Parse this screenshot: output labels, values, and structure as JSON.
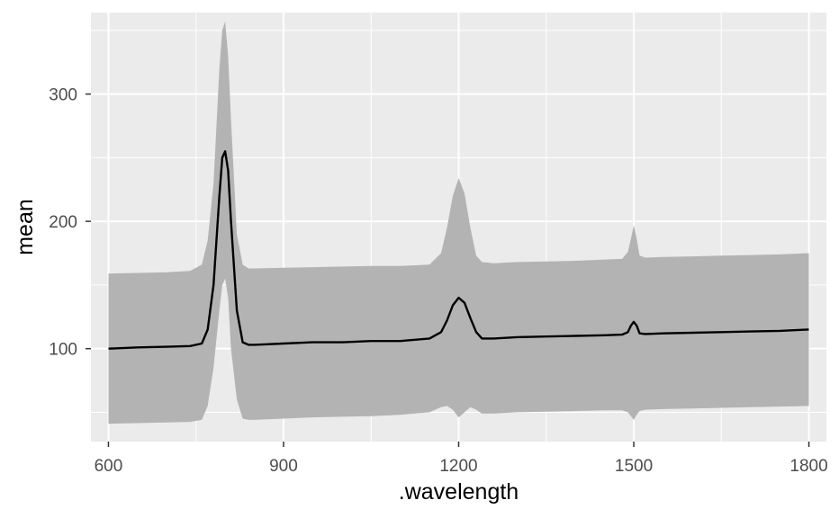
{
  "chart_data": {
    "type": "area",
    "title": "",
    "xlabel": ".wavelength",
    "ylabel": "mean",
    "xlim": [
      570,
      1830
    ],
    "ylim": [
      27,
      364
    ],
    "x_ticks": [
      600,
      900,
      1200,
      1500,
      1800
    ],
    "y_ticks": [
      100,
      200,
      300
    ],
    "x_tick_labels": [
      "600",
      "900",
      "1200",
      "1500",
      "1800"
    ],
    "y_tick_labels": [
      "100",
      "200",
      "300"
    ],
    "grid": true,
    "legend": "none",
    "colors": {
      "panel": "#ebebeb",
      "grid": "#ffffff",
      "ribbon": "#b3b3b3",
      "line": "#000000",
      "axis_text": "#4d4d4d"
    },
    "series": [
      {
        "kind": "line",
        "x": [
          600,
          650,
          700,
          740,
          760,
          770,
          780,
          790,
          795,
          800,
          805,
          810,
          820,
          830,
          840,
          850,
          900,
          950,
          1000,
          1050,
          1100,
          1150,
          1170,
          1180,
          1190,
          1200,
          1210,
          1220,
          1230,
          1240,
          1260,
          1300,
          1350,
          1400,
          1450,
          1480,
          1490,
          1495,
          1500,
          1505,
          1510,
          1520,
          1550,
          1600,
          1650,
          1700,
          1750,
          1800
        ],
        "y": [
          100,
          101,
          101.5,
          102,
          104,
          115,
          150,
          220,
          250,
          255,
          240,
          200,
          130,
          105,
          103,
          103,
          104,
          105,
          105,
          106,
          106,
          108,
          113,
          122,
          134,
          140,
          136,
          124,
          113,
          108,
          108,
          109,
          109.5,
          110,
          110.5,
          111,
          113,
          118,
          121,
          118,
          112,
          111.5,
          112,
          112.5,
          113,
          113.5,
          114,
          115
        ]
      },
      {
        "kind": "ribbon",
        "x": [
          600,
          650,
          700,
          740,
          760,
          770,
          780,
          790,
          795,
          800,
          805,
          810,
          820,
          830,
          840,
          850,
          900,
          950,
          1000,
          1050,
          1100,
          1150,
          1170,
          1180,
          1190,
          1200,
          1210,
          1220,
          1230,
          1240,
          1260,
          1300,
          1350,
          1400,
          1450,
          1480,
          1490,
          1495,
          1500,
          1505,
          1510,
          1520,
          1550,
          1600,
          1650,
          1700,
          1750,
          1800
        ],
        "ymin": [
          41,
          41.5,
          42,
          42.5,
          44,
          55,
          85,
          130,
          150,
          155,
          140,
          100,
          60,
          45,
          44,
          44,
          45,
          46,
          46.5,
          47,
          48,
          50,
          54,
          55,
          52,
          46,
          50,
          54,
          52,
          49,
          49,
          50,
          50.5,
          51,
          51.5,
          51.5,
          50,
          47,
          44,
          48,
          51,
          52,
          52.5,
          53,
          53.5,
          54,
          54.5,
          55
        ],
        "ymax": [
          159,
          159.5,
          160,
          161,
          166,
          185,
          230,
          320,
          350,
          357,
          330,
          280,
          190,
          166,
          163,
          163,
          163.5,
          164,
          164.5,
          165,
          165,
          166,
          175,
          195,
          220,
          234,
          222,
          195,
          173,
          168,
          167,
          168,
          168.5,
          169,
          170,
          170.5,
          176,
          186,
          197,
          186,
          173,
          171.5,
          172,
          172.5,
          173,
          173.5,
          174,
          175
        ]
      }
    ]
  }
}
